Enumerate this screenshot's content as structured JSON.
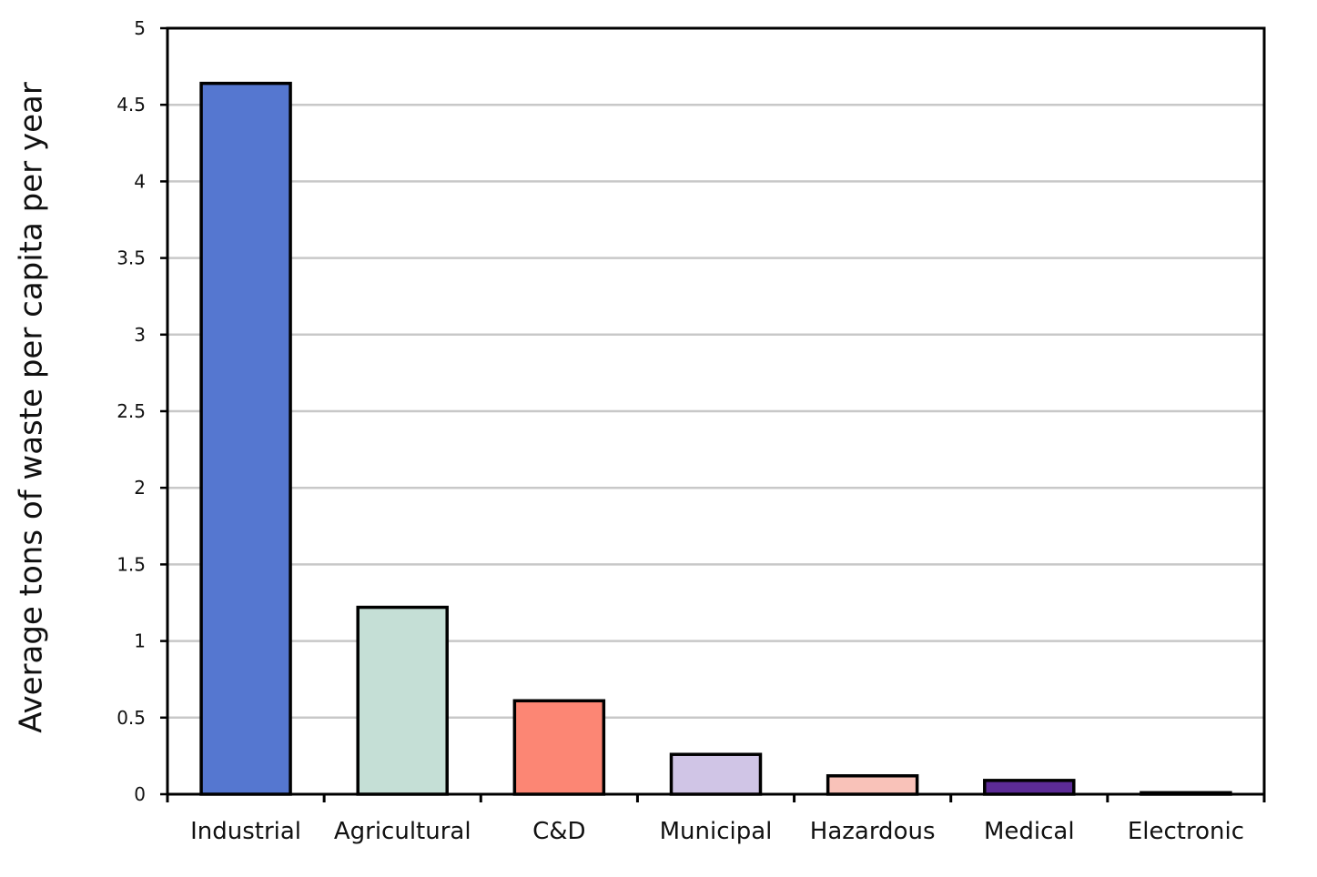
{
  "chart_data": {
    "type": "bar",
    "title": "",
    "xlabel": "",
    "ylabel": "Average tons of waste per capita per year",
    "categories": [
      "Industrial",
      "Agricultural",
      "C&D",
      "Municipal",
      "Hazardous",
      "Medical",
      "Electronic"
    ],
    "values": [
      4.64,
      1.22,
      0.61,
      0.26,
      0.12,
      0.09,
      0.01
    ],
    "colors": [
      "#5577d0",
      "#c5dfd6",
      "#fc8674",
      "#d0c5e6",
      "#f9c2b9",
      "#5c2b96",
      "#ffffff"
    ],
    "ylim": [
      0,
      5
    ],
    "yticks": [
      "0",
      "0.5",
      "1",
      "1.5",
      "2",
      "2.5",
      "3",
      "3.5",
      "4",
      "4.5",
      "5"
    ],
    "grid": true,
    "legend": "none"
  }
}
